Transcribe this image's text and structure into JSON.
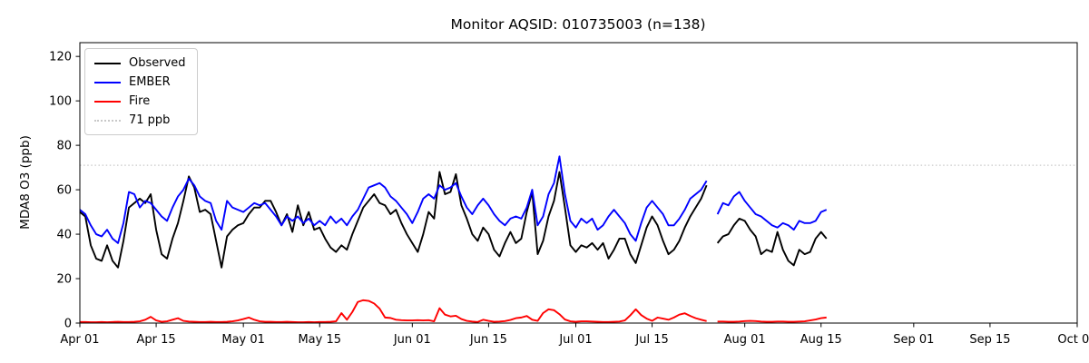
{
  "chart_data": {
    "type": "line",
    "title": "Monitor AQSID: 010735003 (n=138)",
    "ylabel": "MDA8 O3 (ppb)",
    "xlabel": "",
    "ylim": [
      0,
      126.2
    ],
    "xlim_days": [
      0,
      183
    ],
    "grid": false,
    "legend_position": "upper-left",
    "threshold": {
      "value": 71,
      "label": "71 ppb",
      "color": "#c8c8c8",
      "style": "dotted"
    },
    "y_ticks": [
      0,
      20,
      40,
      60,
      80,
      100,
      120
    ],
    "x_ticks": [
      {
        "day": 0,
        "label": "Apr 01"
      },
      {
        "day": 14,
        "label": "Apr 15"
      },
      {
        "day": 30,
        "label": "May 01"
      },
      {
        "day": 44,
        "label": "May 15"
      },
      {
        "day": 61,
        "label": "Jun 01"
      },
      {
        "day": 75,
        "label": "Jun 15"
      },
      {
        "day": 91,
        "label": "Jul 01"
      },
      {
        "day": 105,
        "label": "Jul 15"
      },
      {
        "day": 122,
        "label": "Aug 01"
      },
      {
        "day": 136,
        "label": "Aug 15"
      },
      {
        "day": 153,
        "label": "Sep 01"
      },
      {
        "day": 167,
        "label": "Sep 15"
      },
      {
        "day": 183,
        "label": "Oct 01"
      }
    ],
    "x_start_date": "Apr 01",
    "x_end_date": "Aug 16",
    "missing_day_index": 116,
    "legend": [
      {
        "label": "Observed",
        "color": "#000000",
        "dash": "solid"
      },
      {
        "label": "EMBER",
        "color": "#0000ff",
        "dash": "solid"
      },
      {
        "label": "Fire",
        "color": "#ff0000",
        "dash": "solid"
      },
      {
        "label": "71 ppb",
        "color": "#c8c8c8",
        "dash": "dotted"
      }
    ],
    "series": [
      {
        "name": "Observed",
        "color": "#000000",
        "values": [
          50,
          48,
          35,
          29,
          28,
          35,
          28,
          25,
          37,
          52,
          54,
          56,
          54,
          58,
          42,
          31,
          29,
          38,
          45,
          55,
          66,
          61,
          50,
          51,
          49,
          37,
          25,
          39,
          42,
          44,
          45,
          49,
          52,
          52,
          55,
          55,
          50,
          44,
          49,
          41,
          53,
          44,
          50,
          42,
          43,
          38,
          34,
          32,
          35,
          33,
          40,
          46,
          52,
          55,
          58,
          54,
          53,
          49,
          51,
          45,
          40,
          36,
          32,
          40,
          50,
          47,
          68,
          58,
          59,
          67,
          53,
          47,
          40,
          37,
          43,
          40,
          33,
          30,
          36,
          41,
          36,
          38,
          50,
          59,
          31,
          37,
          48,
          55,
          68,
          52,
          35,
          32,
          35,
          34,
          36,
          33,
          36,
          29,
          33,
          38,
          38,
          31,
          27,
          35,
          43,
          48,
          44,
          37,
          31,
          33,
          37,
          43,
          48,
          52,
          56,
          62,
          null,
          36,
          39,
          40,
          44,
          47,
          46,
          42,
          39,
          31,
          33,
          32,
          41,
          33,
          28,
          26,
          33,
          31,
          32,
          38,
          41,
          38
        ]
      },
      {
        "name": "EMBER",
        "color": "#0000ff",
        "values": [
          51,
          49,
          44,
          40,
          39,
          42,
          38,
          36,
          45,
          59,
          58,
          52,
          55,
          54,
          51,
          48,
          46,
          52,
          57,
          60,
          65,
          62,
          57,
          55,
          54,
          46,
          42,
          55,
          52,
          51,
          50,
          52,
          54,
          53,
          54,
          51,
          48,
          44,
          48,
          46,
          48,
          45,
          47,
          44,
          46,
          44,
          48,
          45,
          47,
          44,
          48,
          51,
          56,
          61,
          62,
          63,
          61,
          57,
          55,
          52,
          49,
          45,
          50,
          56,
          58,
          56,
          62,
          60,
          61,
          63,
          57,
          52,
          49,
          53,
          56,
          53,
          49,
          46,
          44,
          47,
          48,
          47,
          52,
          60,
          44,
          48,
          58,
          63,
          75,
          58,
          46,
          43,
          47,
          45,
          47,
          42,
          44,
          48,
          51,
          48,
          45,
          40,
          37,
          45,
          52,
          55,
          52,
          49,
          44,
          44,
          47,
          51,
          56,
          58,
          60,
          64,
          null,
          49,
          54,
          53,
          57,
          59,
          55,
          52,
          49,
          48,
          46,
          44,
          43,
          45,
          44,
          42,
          46,
          45,
          45,
          46,
          50,
          51
        ]
      },
      {
        "name": "Fire",
        "color": "#ff0000",
        "values": [
          0.5,
          0.5,
          0.4,
          0.4,
          0.5,
          0.4,
          0.5,
          0.6,
          0.5,
          0.5,
          0.6,
          0.8,
          1.5,
          2.8,
          1.2,
          0.6,
          0.8,
          1.5,
          2.2,
          1.0,
          0.7,
          0.6,
          0.5,
          0.5,
          0.6,
          0.5,
          0.5,
          0.6,
          0.8,
          1.2,
          1.8,
          2.5,
          1.5,
          0.8,
          0.6,
          0.6,
          0.5,
          0.5,
          0.6,
          0.5,
          0.4,
          0.4,
          0.5,
          0.4,
          0.5,
          0.5,
          0.6,
          0.8,
          4.5,
          1.5,
          5.0,
          9.5,
          10.3,
          10.0,
          8.8,
          6.5,
          2.5,
          2.3,
          1.5,
          1.3,
          1.2,
          1.2,
          1.3,
          1.2,
          1.3,
          0.8,
          6.7,
          3.8,
          3.0,
          3.3,
          1.8,
          1.0,
          0.7,
          0.5,
          1.5,
          1.0,
          0.6,
          0.7,
          0.9,
          1.4,
          2.2,
          2.5,
          3.2,
          1.5,
          1.0,
          4.5,
          6.2,
          5.8,
          4.0,
          1.6,
          0.8,
          0.6,
          0.8,
          0.8,
          0.7,
          0.6,
          0.5,
          0.5,
          0.6,
          0.7,
          1.2,
          3.5,
          6.2,
          3.6,
          2.0,
          1.0,
          2.5,
          2.0,
          1.5,
          2.5,
          3.8,
          4.4,
          3.2,
          2.2,
          1.5,
          0.9,
          null,
          0.7,
          0.7,
          0.6,
          0.6,
          0.7,
          0.9,
          1.0,
          0.9,
          0.7,
          0.6,
          0.6,
          0.7,
          0.7,
          0.6,
          0.6,
          0.7,
          0.8,
          1.2,
          1.6,
          2.2,
          2.5
        ]
      }
    ]
  }
}
